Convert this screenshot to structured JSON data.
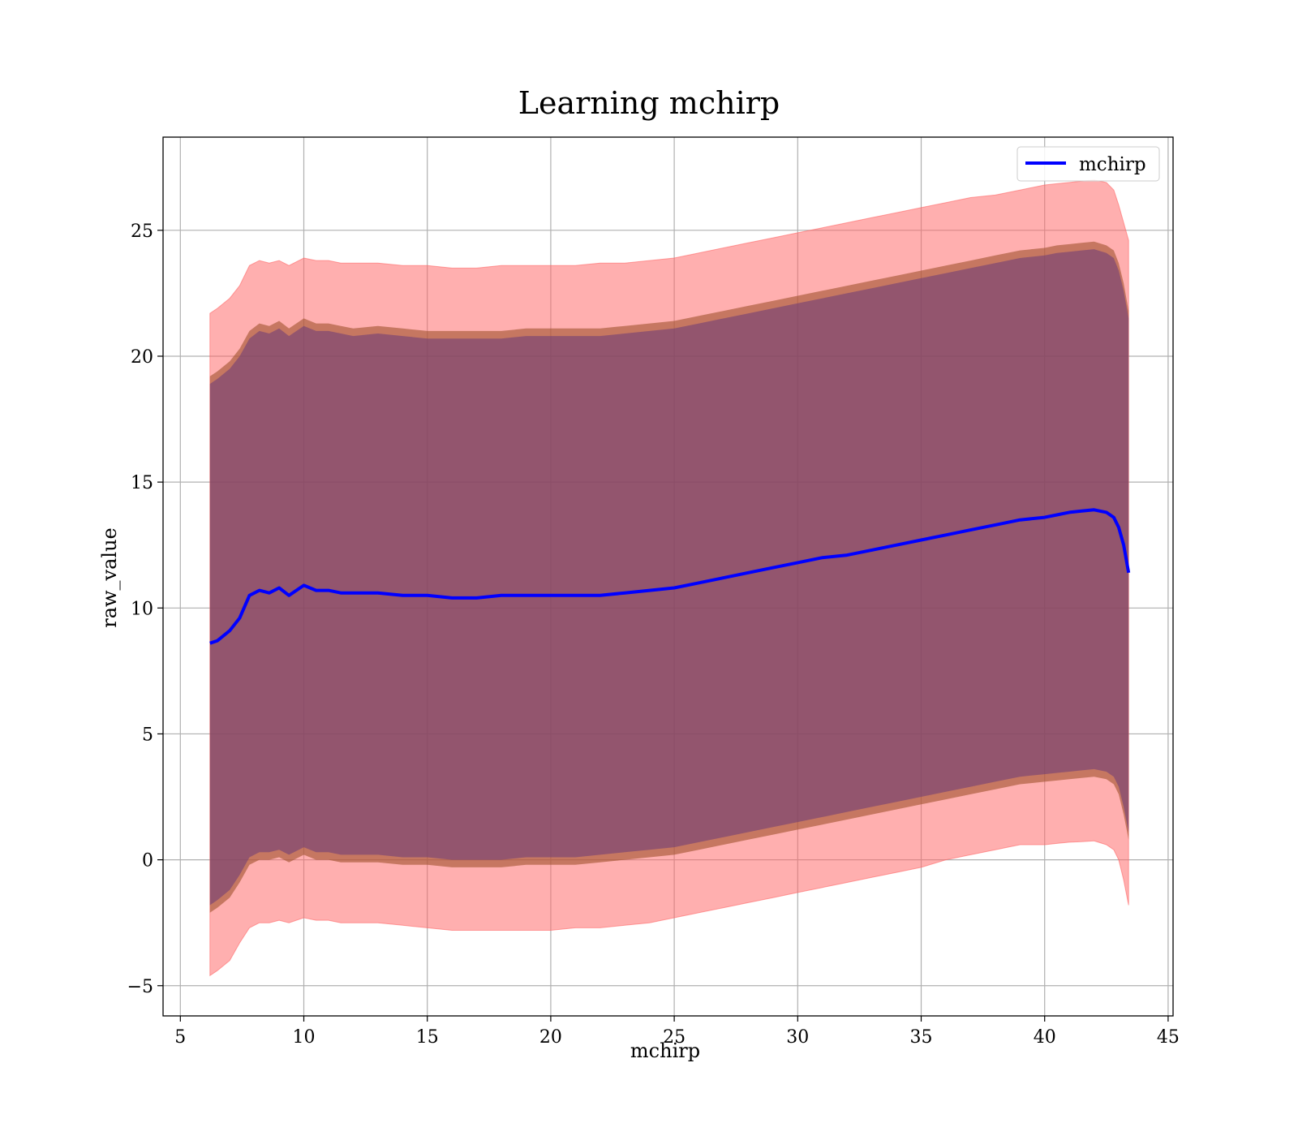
{
  "chart_data": {
    "type": "line",
    "title": "Learning mchirp",
    "xlabel": "mchirp",
    "ylabel": "raw_value",
    "xlim": [
      4.3,
      45.2
    ],
    "ylim": [
      -6.2,
      28.7
    ],
    "xticks": [
      5,
      10,
      15,
      20,
      25,
      30,
      35,
      40,
      45
    ],
    "yticks": [
      -5,
      0,
      5,
      10,
      15,
      20,
      25
    ],
    "xtick_labels": [
      "5",
      "10",
      "15",
      "20",
      "25",
      "30",
      "35",
      "40",
      "45"
    ],
    "ytick_labels": [
      "−5",
      "0",
      "5",
      "10",
      "15",
      "20",
      "25"
    ],
    "grid": true,
    "legend": {
      "position": "top-right",
      "entries": [
        "mchirp"
      ]
    },
    "colors": {
      "line": "#0000ff",
      "outer_band": "#ff6666",
      "middle_band": "#a0522d",
      "inner_band": "#6a3a7a"
    },
    "x": [
      6.2,
      6.5,
      7.0,
      7.4,
      7.8,
      8.2,
      8.6,
      9.0,
      9.4,
      10.0,
      10.5,
      11.0,
      11.5,
      12.0,
      13.0,
      14.0,
      15.0,
      16.0,
      17.0,
      18.0,
      19.0,
      20.0,
      21.0,
      22.0,
      23.0,
      24.0,
      25.0,
      26.0,
      27.0,
      28.0,
      29.0,
      30.0,
      31.0,
      32.0,
      33.0,
      34.0,
      35.0,
      36.0,
      37.0,
      38.0,
      39.0,
      40.0,
      40.5,
      41.0,
      41.5,
      42.0,
      42.5,
      42.8,
      43.0,
      43.2,
      43.4
    ],
    "series": [
      {
        "name": "mchirp",
        "role": "mean",
        "values": [
          8.6,
          8.7,
          9.1,
          9.6,
          10.5,
          10.7,
          10.6,
          10.8,
          10.5,
          10.9,
          10.7,
          10.7,
          10.6,
          10.6,
          10.6,
          10.5,
          10.5,
          10.4,
          10.4,
          10.5,
          10.5,
          10.5,
          10.5,
          10.5,
          10.6,
          10.7,
          10.8,
          11.0,
          11.2,
          11.4,
          11.6,
          11.8,
          12.0,
          12.1,
          12.3,
          12.5,
          12.7,
          12.9,
          13.1,
          13.3,
          13.5,
          13.6,
          13.7,
          13.8,
          13.85,
          13.9,
          13.8,
          13.6,
          13.2,
          12.5,
          11.4
        ]
      },
      {
        "role": "outer_upper",
        "values": [
          21.7,
          21.9,
          22.3,
          22.8,
          23.6,
          23.8,
          23.7,
          23.8,
          23.6,
          23.9,
          23.8,
          23.8,
          23.7,
          23.7,
          23.7,
          23.6,
          23.6,
          23.5,
          23.5,
          23.6,
          23.6,
          23.6,
          23.6,
          23.7,
          23.7,
          23.8,
          23.9,
          24.1,
          24.3,
          24.5,
          24.7,
          24.9,
          25.1,
          25.3,
          25.5,
          25.7,
          25.9,
          26.1,
          26.3,
          26.4,
          26.6,
          26.8,
          26.85,
          26.9,
          26.95,
          27.0,
          26.9,
          26.6,
          26.0,
          25.3,
          24.6
        ]
      },
      {
        "role": "outer_lower",
        "values": [
          -4.6,
          -4.4,
          -4.0,
          -3.3,
          -2.7,
          -2.5,
          -2.5,
          -2.4,
          -2.5,
          -2.3,
          -2.4,
          -2.4,
          -2.5,
          -2.5,
          -2.5,
          -2.6,
          -2.7,
          -2.8,
          -2.8,
          -2.8,
          -2.8,
          -2.8,
          -2.7,
          -2.7,
          -2.6,
          -2.5,
          -2.3,
          -2.1,
          -1.9,
          -1.7,
          -1.5,
          -1.3,
          -1.1,
          -0.9,
          -0.7,
          -0.5,
          -0.3,
          0.0,
          0.2,
          0.4,
          0.6,
          0.6,
          0.65,
          0.7,
          0.72,
          0.75,
          0.6,
          0.4,
          0.0,
          -0.8,
          -1.8
        ]
      },
      {
        "role": "middle_upper",
        "values": [
          19.2,
          19.4,
          19.8,
          20.3,
          21.0,
          21.3,
          21.2,
          21.4,
          21.1,
          21.5,
          21.3,
          21.3,
          21.2,
          21.1,
          21.2,
          21.1,
          21.0,
          21.0,
          21.0,
          21.0,
          21.1,
          21.1,
          21.1,
          21.1,
          21.2,
          21.3,
          21.4,
          21.6,
          21.8,
          22.0,
          22.2,
          22.4,
          22.6,
          22.8,
          23.0,
          23.2,
          23.4,
          23.6,
          23.8,
          24.0,
          24.2,
          24.3,
          24.4,
          24.45,
          24.5,
          24.55,
          24.4,
          24.2,
          23.7,
          22.9,
          21.8
        ]
      },
      {
        "role": "middle_lower",
        "values": [
          -2.1,
          -1.9,
          -1.5,
          -0.9,
          -0.2,
          0.0,
          0.0,
          0.1,
          -0.1,
          0.2,
          0.0,
          0.0,
          -0.1,
          -0.1,
          -0.1,
          -0.2,
          -0.2,
          -0.3,
          -0.3,
          -0.3,
          -0.2,
          -0.2,
          -0.2,
          -0.1,
          0.0,
          0.1,
          0.2,
          0.4,
          0.6,
          0.8,
          1.0,
          1.2,
          1.4,
          1.6,
          1.8,
          2.0,
          2.2,
          2.4,
          2.6,
          2.8,
          3.0,
          3.1,
          3.15,
          3.2,
          3.25,
          3.3,
          3.2,
          3.0,
          2.6,
          1.8,
          0.8
        ]
      },
      {
        "role": "inner_upper",
        "values": [
          18.9,
          19.1,
          19.5,
          20.0,
          20.7,
          21.0,
          20.9,
          21.1,
          20.8,
          21.2,
          21.0,
          21.0,
          20.9,
          20.8,
          20.9,
          20.8,
          20.7,
          20.7,
          20.7,
          20.7,
          20.8,
          20.8,
          20.8,
          20.8,
          20.9,
          21.0,
          21.1,
          21.3,
          21.5,
          21.7,
          21.9,
          22.1,
          22.3,
          22.5,
          22.7,
          22.9,
          23.1,
          23.3,
          23.5,
          23.7,
          23.9,
          24.0,
          24.1,
          24.15,
          24.2,
          24.25,
          24.1,
          23.9,
          23.4,
          22.6,
          21.5
        ]
      },
      {
        "role": "inner_lower",
        "values": [
          -1.8,
          -1.6,
          -1.2,
          -0.6,
          0.1,
          0.3,
          0.3,
          0.4,
          0.2,
          0.5,
          0.3,
          0.3,
          0.2,
          0.2,
          0.2,
          0.1,
          0.1,
          0.0,
          0.0,
          0.0,
          0.1,
          0.1,
          0.1,
          0.2,
          0.3,
          0.4,
          0.5,
          0.7,
          0.9,
          1.1,
          1.3,
          1.5,
          1.7,
          1.9,
          2.1,
          2.3,
          2.5,
          2.7,
          2.9,
          3.1,
          3.3,
          3.4,
          3.45,
          3.5,
          3.55,
          3.6,
          3.5,
          3.3,
          2.9,
          2.1,
          1.1
        ]
      }
    ]
  }
}
